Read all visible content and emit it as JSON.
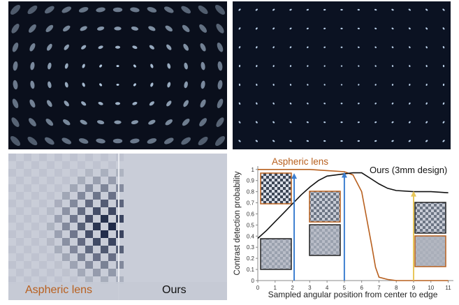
{
  "panels": {
    "bottom_left": {
      "left_caption": "Aspheric lens",
      "right_caption": "Ours"
    }
  },
  "colors": {
    "aspheric": "#b8601f",
    "ours": "#111111",
    "marker_1": "#3d7fd0",
    "marker_2": "#3d7fd0",
    "marker_3": "#e8c75a",
    "psf_dot": "#cfe7ff"
  },
  "chart_data": {
    "type": "line",
    "xlabel": "Sampled angular position from center to edge",
    "ylabel": "Contrast detection probability",
    "xlim": [
      0,
      11.3
    ],
    "ylim": [
      0,
      1.03
    ],
    "xticks": [
      0,
      1,
      2,
      3,
      4,
      5,
      6,
      7,
      8,
      9,
      10,
      11
    ],
    "yticks": [
      0,
      0.1,
      0.2,
      0.3,
      0.4,
      0.5,
      0.6,
      0.7,
      0.8,
      0.9,
      1
    ],
    "series": [
      {
        "name": "Aspheric lens",
        "x": [
          0,
          1,
          2,
          3,
          4,
          5,
          5.5,
          6,
          6.3,
          6.6,
          6.8,
          7,
          7.5,
          8,
          9,
          10,
          11
        ],
        "values": [
          1,
          1,
          1,
          1,
          0.99,
          0.98,
          0.95,
          0.8,
          0.55,
          0.3,
          0.12,
          0.03,
          0.01,
          0,
          0,
          0,
          0
        ]
      },
      {
        "name": "Ours (3mm design)",
        "x": [
          0,
          0.5,
          1,
          1.5,
          2,
          2.5,
          3,
          3.5,
          4,
          4.5,
          5,
          5.5,
          6,
          6.5,
          7,
          7.5,
          8,
          9,
          10,
          11
        ],
        "values": [
          0.38,
          0.45,
          0.53,
          0.61,
          0.69,
          0.77,
          0.84,
          0.9,
          0.94,
          0.95,
          0.96,
          0.97,
          0.97,
          0.92,
          0.87,
          0.83,
          0.81,
          0.8,
          0.8,
          0.79
        ]
      }
    ],
    "markers": [
      {
        "x": 2.1,
        "y": 0.96
      },
      {
        "x": 5.0,
        "y": 0.97
      },
      {
        "x": 9.0,
        "y": 0.8
      }
    ]
  }
}
